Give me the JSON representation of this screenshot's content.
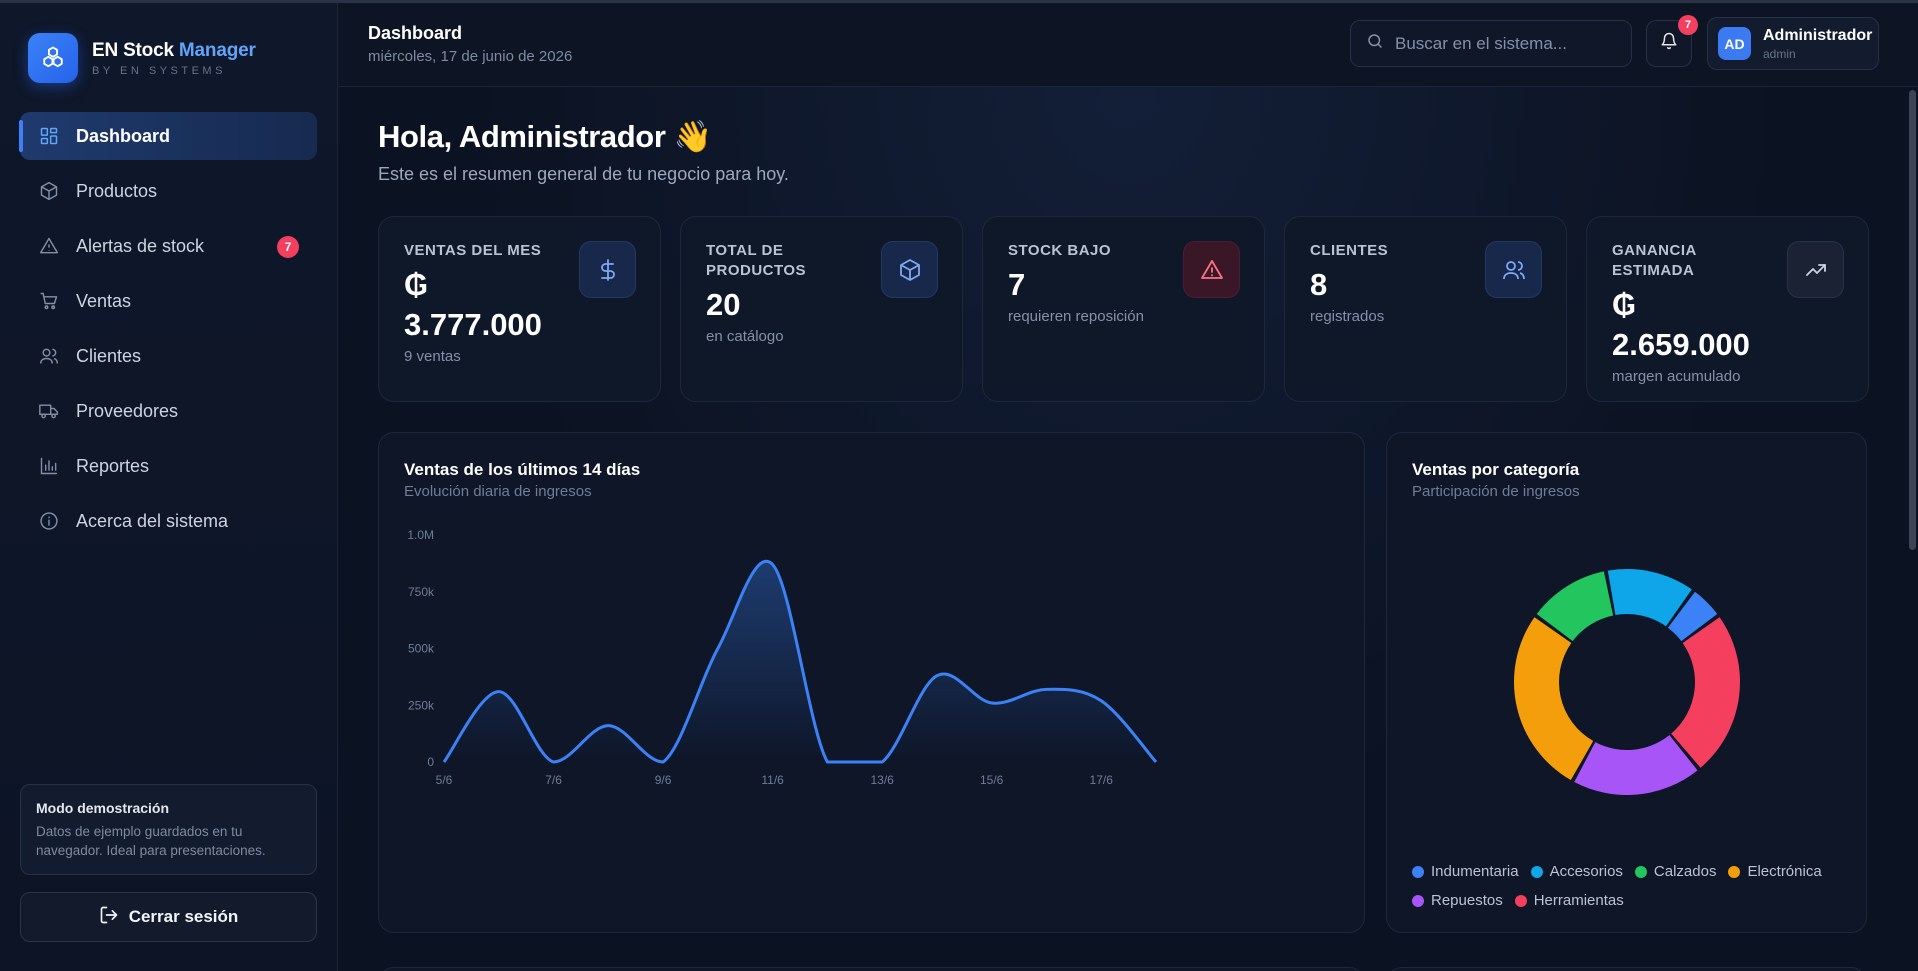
{
  "brand": {
    "name": "EN Stock",
    "name_accent": "Manager",
    "subtitle": "BY EN SYSTEMS",
    "logo_icon": "cubes-icon"
  },
  "nav": [
    {
      "label": "Dashboard",
      "icon": "dashboard-grid-icon",
      "active": true
    },
    {
      "label": "Productos",
      "icon": "box-icon"
    },
    {
      "label": "Alertas de stock",
      "icon": "warning-triangle-icon",
      "badge": "7"
    },
    {
      "label": "Ventas",
      "icon": "shopping-cart-icon"
    },
    {
      "label": "Clientes",
      "icon": "users-icon"
    },
    {
      "label": "Proveedores",
      "icon": "truck-icon"
    },
    {
      "label": "Reportes",
      "icon": "bar-chart-icon"
    },
    {
      "label": "Acerca del sistema",
      "icon": "info-circle-icon"
    }
  ],
  "demo": {
    "title": "Modo demostración",
    "text": "Datos de ejemplo guardados en tu navegador. Ideal para presentaciones."
  },
  "logout": {
    "label": "Cerrar sesión",
    "icon": "logout-icon"
  },
  "header": {
    "title": "Dashboard",
    "date": "miércoles, 17 de junio de 2026",
    "search_placeholder": "Buscar en el sistema...",
    "notifications_count": "7",
    "user": {
      "initials": "AD",
      "name": "Administrador",
      "role": "admin"
    }
  },
  "greeting": {
    "title": "Hola, Administrador 👋",
    "subtitle": "Este es el resumen general de tu negocio para hoy."
  },
  "stats": [
    {
      "label": "VENTAS DEL MES",
      "value": "₲ 3.777.000",
      "sub": "9 ventas",
      "icon": "dollar-icon"
    },
    {
      "label": "TOTAL DE PRODUCTOS",
      "value": "20",
      "sub": "en catálogo",
      "icon": "box-icon"
    },
    {
      "label": "STOCK BAJO",
      "value": "7",
      "sub": "requieren reposición",
      "icon": "warning-triangle-icon"
    },
    {
      "label": "CLIENTES",
      "value": "8",
      "sub": "registrados",
      "icon": "users-icon"
    },
    {
      "label": "GANANCIA ESTIMADA",
      "value": "₲ 2.659.000",
      "sub": "margen acumulado",
      "icon": "trending-up-icon"
    }
  ],
  "colors": {
    "accent": "#3b82f6",
    "danger": "#f43f5e",
    "background": "#0b1120"
  },
  "line_panel": {
    "title": "Ventas de los últimos 14 días",
    "subtitle": "Evolución diaria de ingresos"
  },
  "donut_panel": {
    "title": "Ventas por categoría",
    "subtitle": "Participación de ingresos"
  },
  "chart_data": [
    {
      "type": "area",
      "title": "Ventas de los últimos 14 días",
      "x": [
        "5/6",
        "6/6",
        "7/6",
        "8/6",
        "9/6",
        "10/6",
        "11/6",
        "12/6",
        "13/6",
        "14/6",
        "15/6",
        "16/6",
        "17/6",
        "18/6"
      ],
      "x_tick_labels": [
        "5/6",
        "7/6",
        "9/6",
        "11/6",
        "13/6",
        "15/6",
        "17/6"
      ],
      "values": [
        0,
        310000,
        0,
        160000,
        0,
        500000,
        870000,
        0,
        0,
        380000,
        260000,
        320000,
        270000,
        0
      ],
      "y_ticks": [
        "0",
        "250k",
        "500k",
        "750k",
        "1.0M"
      ],
      "ylim": [
        0,
        1000000
      ],
      "color": "#3b82f6"
    },
    {
      "type": "pie",
      "title": "Ventas por categoría",
      "donut": true,
      "slices": [
        {
          "name": "Indumentaria",
          "value": 5,
          "color": "#3b82f6"
        },
        {
          "name": "Herramientas",
          "value": 24,
          "color": "#f43f5e"
        },
        {
          "name": "Repuestos",
          "value": 19,
          "color": "#a855f7"
        },
        {
          "name": "Electrónica",
          "value": 27,
          "color": "#f59e0b"
        },
        {
          "name": "Calzados",
          "value": 12,
          "color": "#22c55e"
        },
        {
          "name": "Accesorios",
          "value": 13,
          "color": "#0ea5e9"
        }
      ],
      "legend_order": [
        "Indumentaria",
        "Accesorios",
        "Calzados",
        "Electrónica",
        "Repuestos",
        "Herramientas"
      ]
    }
  ]
}
